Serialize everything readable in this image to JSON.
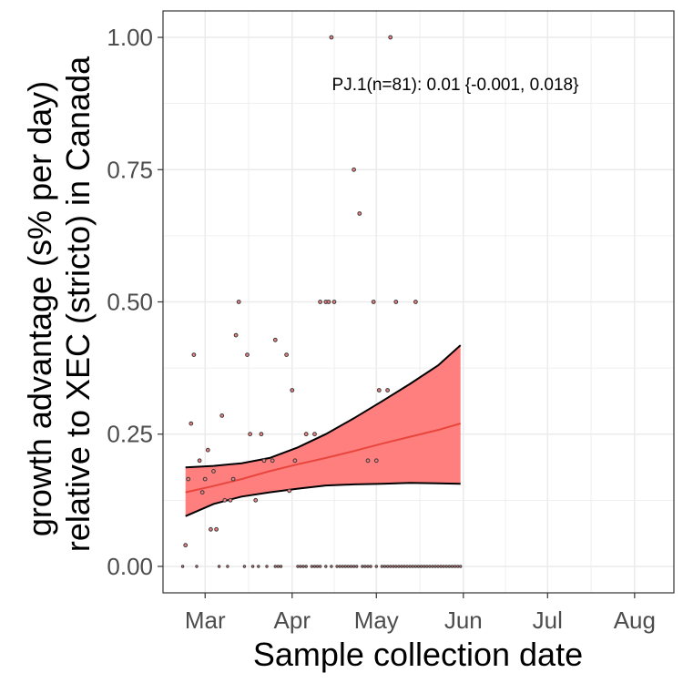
{
  "chart_data": {
    "type": "scatter",
    "xlabel": "Sample collection date",
    "ylabel_lines": [
      "growth advantage (s% per day)",
      "relative to XEC (stricto) in Canada"
    ],
    "annotation": "PJ.1(n=81): 0.01 {-0.001, 0.018}",
    "xlim": [
      "2025-02-14",
      "2025-08-15"
    ],
    "ylim": [
      -0.05,
      1.05
    ],
    "x_ticks": [
      {
        "date": "2025-03-01",
        "label": "Mar"
      },
      {
        "date": "2025-04-01",
        "label": "Apr"
      },
      {
        "date": "2025-05-01",
        "label": "May"
      },
      {
        "date": "2025-06-01",
        "label": "Jun"
      },
      {
        "date": "2025-07-01",
        "label": "Jul"
      },
      {
        "date": "2025-08-01",
        "label": "Aug"
      }
    ],
    "y_ticks": [
      {
        "value": 0.0,
        "label": "0.00"
      },
      {
        "value": 0.25,
        "label": "0.25"
      },
      {
        "value": 0.5,
        "label": "0.50"
      },
      {
        "value": 0.75,
        "label": "0.75"
      },
      {
        "value": 1.0,
        "label": "1.00"
      }
    ],
    "grid": true,
    "colors": {
      "band": "#ff7f7f",
      "band_outline": "#000000",
      "fit_line": "#e8463c",
      "point_fill": "#f08080",
      "point_edge": "#3a3a3a",
      "grid": "#ebebeb",
      "panel_border": "#333333"
    },
    "fit": {
      "dates": [
        "2025-02-22",
        "2025-03-04",
        "2025-03-14",
        "2025-03-24",
        "2025-04-03",
        "2025-04-13",
        "2025-04-23",
        "2025-05-03",
        "2025-05-13",
        "2025-05-23",
        "2025-05-31"
      ],
      "mid": [
        0.14,
        0.152,
        0.165,
        0.18,
        0.193,
        0.205,
        0.218,
        0.232,
        0.245,
        0.258,
        0.27
      ],
      "lower": [
        0.095,
        0.118,
        0.132,
        0.14,
        0.147,
        0.153,
        0.155,
        0.156,
        0.158,
        0.157,
        0.156
      ],
      "upper": [
        0.187,
        0.19,
        0.195,
        0.205,
        0.225,
        0.25,
        0.28,
        0.312,
        0.345,
        0.38,
        0.418
      ]
    },
    "points": [
      {
        "x": "2025-02-22",
        "y": 0.04
      },
      {
        "x": "2025-02-23",
        "y": 0.165
      },
      {
        "x": "2025-02-24",
        "y": 0.27
      },
      {
        "x": "2025-02-25",
        "y": 0.4
      },
      {
        "x": "2025-02-27",
        "y": 0.2
      },
      {
        "x": "2025-02-28",
        "y": 0.14
      },
      {
        "x": "2025-03-01",
        "y": 0.165
      },
      {
        "x": "2025-03-02",
        "y": 0.22
      },
      {
        "x": "2025-03-03",
        "y": 0.07
      },
      {
        "x": "2025-03-04",
        "y": 0.18
      },
      {
        "x": "2025-03-05",
        "y": 0.07
      },
      {
        "x": "2025-03-07",
        "y": 0.285
      },
      {
        "x": "2025-03-08",
        "y": 0.125
      },
      {
        "x": "2025-03-10",
        "y": 0.125
      },
      {
        "x": "2025-03-11",
        "y": 0.165
      },
      {
        "x": "2025-03-12",
        "y": 0.437
      },
      {
        "x": "2025-03-13",
        "y": 0.5
      },
      {
        "x": "2025-03-16",
        "y": 0.4
      },
      {
        "x": "2025-03-17",
        "y": 0.25
      },
      {
        "x": "2025-03-19",
        "y": 0.125
      },
      {
        "x": "2025-03-21",
        "y": 0.25
      },
      {
        "x": "2025-03-22",
        "y": 0.2
      },
      {
        "x": "2025-03-25",
        "y": 0.2
      },
      {
        "x": "2025-03-26",
        "y": 0.428
      },
      {
        "x": "2025-03-30",
        "y": 0.4
      },
      {
        "x": "2025-03-31",
        "y": 0.143
      },
      {
        "x": "2025-04-01",
        "y": 0.333
      },
      {
        "x": "2025-04-02",
        "y": 0.2
      },
      {
        "x": "2025-04-06",
        "y": 0.25
      },
      {
        "x": "2025-04-09",
        "y": 0.25
      },
      {
        "x": "2025-04-11",
        "y": 0.5
      },
      {
        "x": "2025-04-13",
        "y": 0.5
      },
      {
        "x": "2025-04-14",
        "y": 0.5
      },
      {
        "x": "2025-04-15",
        "y": 1.0
      },
      {
        "x": "2025-04-16",
        "y": 0.5
      },
      {
        "x": "2025-04-23",
        "y": 0.75
      },
      {
        "x": "2025-04-25",
        "y": 0.667
      },
      {
        "x": "2025-04-28",
        "y": 0.2
      },
      {
        "x": "2025-04-30",
        "y": 0.5
      },
      {
        "x": "2025-05-01",
        "y": 0.2
      },
      {
        "x": "2025-05-02",
        "y": 0.333
      },
      {
        "x": "2025-05-05",
        "y": 0.333
      },
      {
        "x": "2025-05-06",
        "y": 1.0
      },
      {
        "x": "2025-05-08",
        "y": 0.5
      },
      {
        "x": "2025-05-15",
        "y": 0.5
      },
      {
        "x": "2025-02-21",
        "y": 0
      },
      {
        "x": "2025-02-26",
        "y": 0
      },
      {
        "x": "2025-03-06",
        "y": 0
      },
      {
        "x": "2025-03-09",
        "y": 0
      },
      {
        "x": "2025-03-15",
        "y": 0
      },
      {
        "x": "2025-03-18",
        "y": 0
      },
      {
        "x": "2025-03-20",
        "y": 0
      },
      {
        "x": "2025-03-23",
        "y": 0
      },
      {
        "x": "2025-03-26",
        "y": 0
      },
      {
        "x": "2025-03-27",
        "y": 0
      },
      {
        "x": "2025-03-28",
        "y": 0
      },
      {
        "x": "2025-04-03",
        "y": 0
      },
      {
        "x": "2025-04-04",
        "y": 0
      },
      {
        "x": "2025-04-05",
        "y": 0
      },
      {
        "x": "2025-04-06",
        "y": 0
      },
      {
        "x": "2025-04-08",
        "y": 0
      },
      {
        "x": "2025-04-09",
        "y": 0
      },
      {
        "x": "2025-04-10",
        "y": 0
      },
      {
        "x": "2025-04-11",
        "y": 0
      },
      {
        "x": "2025-04-13",
        "y": 0
      },
      {
        "x": "2025-04-15",
        "y": 0
      },
      {
        "x": "2025-04-17",
        "y": 0
      },
      {
        "x": "2025-04-18",
        "y": 0
      },
      {
        "x": "2025-04-19",
        "y": 0
      },
      {
        "x": "2025-04-20",
        "y": 0
      },
      {
        "x": "2025-04-21",
        "y": 0
      },
      {
        "x": "2025-04-22",
        "y": 0
      },
      {
        "x": "2025-04-23",
        "y": 0
      },
      {
        "x": "2025-04-24",
        "y": 0
      },
      {
        "x": "2025-04-26",
        "y": 0
      },
      {
        "x": "2025-04-27",
        "y": 0
      },
      {
        "x": "2025-04-28",
        "y": 0
      },
      {
        "x": "2025-04-29",
        "y": 0
      },
      {
        "x": "2025-05-01",
        "y": 0
      },
      {
        "x": "2025-05-03",
        "y": 0
      },
      {
        "x": "2025-05-04",
        "y": 0
      },
      {
        "x": "2025-05-05",
        "y": 0
      },
      {
        "x": "2025-05-06",
        "y": 0
      },
      {
        "x": "2025-05-07",
        "y": 0
      },
      {
        "x": "2025-05-08",
        "y": 0
      },
      {
        "x": "2025-05-09",
        "y": 0
      },
      {
        "x": "2025-05-10",
        "y": 0
      },
      {
        "x": "2025-05-11",
        "y": 0
      },
      {
        "x": "2025-05-12",
        "y": 0
      },
      {
        "x": "2025-05-13",
        "y": 0
      },
      {
        "x": "2025-05-14",
        "y": 0
      },
      {
        "x": "2025-05-15",
        "y": 0
      },
      {
        "x": "2025-05-16",
        "y": 0
      },
      {
        "x": "2025-05-17",
        "y": 0
      },
      {
        "x": "2025-05-18",
        "y": 0
      },
      {
        "x": "2025-05-19",
        "y": 0
      },
      {
        "x": "2025-05-20",
        "y": 0
      },
      {
        "x": "2025-05-21",
        "y": 0
      },
      {
        "x": "2025-05-22",
        "y": 0
      },
      {
        "x": "2025-05-23",
        "y": 0
      },
      {
        "x": "2025-05-24",
        "y": 0
      },
      {
        "x": "2025-05-25",
        "y": 0
      },
      {
        "x": "2025-05-26",
        "y": 0
      },
      {
        "x": "2025-05-27",
        "y": 0
      },
      {
        "x": "2025-05-28",
        "y": 0
      },
      {
        "x": "2025-05-29",
        "y": 0
      },
      {
        "x": "2025-05-30",
        "y": 0
      },
      {
        "x": "2025-05-31",
        "y": 0
      }
    ]
  }
}
